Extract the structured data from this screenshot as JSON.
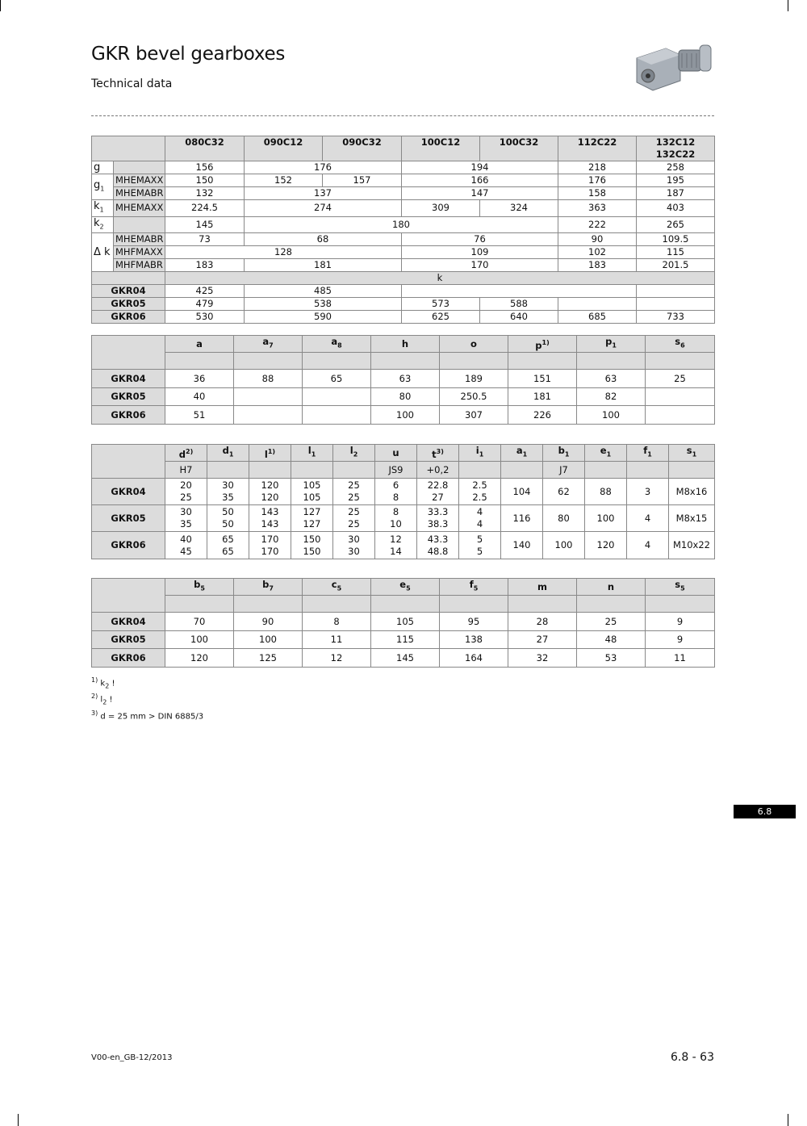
{
  "header": {
    "title": "GKR bevel gearboxes",
    "subtitle": "Technical data",
    "product_image": "bevel-gearbox-motor-image"
  },
  "tables": [
    {
      "rows": [
        [
          {
            "v": "",
            "cs": 2,
            "c": "h"
          },
          {
            "v": "080C32",
            "c": "h top"
          },
          {
            "v": "090C12",
            "c": "h top"
          },
          {
            "v": "090C32",
            "c": "h top"
          },
          {
            "v": "100C12",
            "c": "h top"
          },
          {
            "v": "100C32",
            "c": "h top"
          },
          {
            "v": "112C22",
            "c": "h top"
          },
          {
            "v": "132C12\n132C22",
            "c": "h top"
          }
        ],
        [
          {
            "v": "g",
            "c": "lab"
          },
          {
            "v": "",
            "c": "sublab"
          },
          {
            "v": "156"
          },
          {
            "v": "176",
            "cs": 2
          },
          {
            "v": "194",
            "cs": 2
          },
          {
            "v": "218"
          },
          {
            "v": "258"
          }
        ],
        [
          {
            "v": "g",
            "sub": "1",
            "rs": 2,
            "c": "lab"
          },
          {
            "v": "MHEMAXX",
            "c": "sublab"
          },
          {
            "v": "150"
          },
          {
            "v": "152"
          },
          {
            "v": "157"
          },
          {
            "v": "166",
            "cs": 2
          },
          {
            "v": "176"
          },
          {
            "v": "195"
          }
        ],
        [
          {
            "v": "MHEMABR",
            "c": "sublab"
          },
          {
            "v": "132"
          },
          {
            "v": "137",
            "cs": 2
          },
          {
            "v": "147",
            "cs": 2
          },
          {
            "v": "158"
          },
          {
            "v": "187"
          }
        ],
        [
          {
            "v": "k",
            "sub": "1",
            "c": "lab"
          },
          {
            "v": "MHEMAXX",
            "c": "sublab"
          },
          {
            "v": "224.5"
          },
          {
            "v": "274",
            "cs": 2
          },
          {
            "v": "309"
          },
          {
            "v": "324"
          },
          {
            "v": "363"
          },
          {
            "v": "403"
          }
        ],
        [
          {
            "v": "k",
            "sub": "2",
            "c": "lab"
          },
          {
            "v": "",
            "c": "sublab"
          },
          {
            "v": "145"
          },
          {
            "v": "180",
            "cs": 4
          },
          {
            "v": "222"
          },
          {
            "v": "265"
          }
        ],
        [
          {
            "v": "Δ k",
            "rs": 3,
            "c": "lab"
          },
          {
            "v": "MHEMABR",
            "c": "sublab"
          },
          {
            "v": "73"
          },
          {
            "v": "68",
            "cs": 2
          },
          {
            "v": "76",
            "cs": 2
          },
          {
            "v": "90"
          },
          {
            "v": "109.5"
          }
        ],
        [
          {
            "v": "MHFMAXX",
            "c": "sublab"
          },
          {
            "v": "128",
            "cs": 3
          },
          {
            "v": "109",
            "cs": 2
          },
          {
            "v": "102"
          },
          {
            "v": "115"
          }
        ],
        [
          {
            "v": "MHFMABR",
            "c": "sublab"
          },
          {
            "v": "183"
          },
          {
            "v": "181",
            "cs": 2
          },
          {
            "v": "170",
            "cs": 2
          },
          {
            "v": "183"
          },
          {
            "v": "201.5"
          }
        ],
        [
          {
            "v": "",
            "cs": 2,
            "c": "hn"
          },
          {
            "v": "k",
            "cs": 7,
            "c": "hn"
          }
        ],
        [
          {
            "v": "GKR04",
            "cs": 2,
            "c": "hl"
          },
          {
            "v": "425"
          },
          {
            "v": "485",
            "cs": 2
          },
          {
            "v": "",
            "cs": 3
          },
          {
            "v": ""
          }
        ],
        [
          {
            "v": "GKR05",
            "cs": 2,
            "c": "hl"
          },
          {
            "v": "479"
          },
          {
            "v": "538",
            "cs": 2
          },
          {
            "v": "573"
          },
          {
            "v": "588"
          },
          {
            "v": ""
          },
          {
            "v": ""
          }
        ],
        [
          {
            "v": "GKR06",
            "cs": 2,
            "c": "hl"
          },
          {
            "v": "530"
          },
          {
            "v": "590",
            "cs": 2
          },
          {
            "v": "625"
          },
          {
            "v": "640"
          },
          {
            "v": "685"
          },
          {
            "v": "733"
          }
        ]
      ]
    },
    {
      "rows": [
        [
          {
            "v": "",
            "rs": 2,
            "c": "h"
          },
          {
            "v": "a",
            "c": "h"
          },
          {
            "v": "a",
            "sub": "7",
            "c": "h"
          },
          {
            "v": "a",
            "sub": "8",
            "c": "h"
          },
          {
            "v": "h",
            "c": "h"
          },
          {
            "v": "o",
            "c": "h"
          },
          {
            "v": "p",
            "sup": "1)",
            "c": "h"
          },
          {
            "v": "p",
            "sub": "1",
            "c": "h"
          },
          {
            "v": "s",
            "sub": "6",
            "c": "h"
          }
        ],
        [
          {
            "v": "",
            "c": "hn"
          },
          {
            "v": "",
            "c": "hn"
          },
          {
            "v": "",
            "c": "hn"
          },
          {
            "v": "",
            "c": "hn"
          },
          {
            "v": "",
            "c": "hn"
          },
          {
            "v": "",
            "c": "hn"
          },
          {
            "v": "",
            "c": "hn"
          },
          {
            "v": "",
            "c": "hn"
          }
        ],
        [
          {
            "v": "GKR04",
            "c": "hl"
          },
          {
            "v": "36"
          },
          {
            "v": "88"
          },
          {
            "v": "65"
          },
          {
            "v": "63"
          },
          {
            "v": "189"
          },
          {
            "v": "151"
          },
          {
            "v": "63"
          },
          {
            "v": "25"
          }
        ],
        [
          {
            "v": "GKR05",
            "c": "hl"
          },
          {
            "v": "40"
          },
          {
            "v": ""
          },
          {
            "v": ""
          },
          {
            "v": "80"
          },
          {
            "v": "250.5"
          },
          {
            "v": "181"
          },
          {
            "v": "82"
          },
          {
            "v": ""
          }
        ],
        [
          {
            "v": "GKR06",
            "c": "hl"
          },
          {
            "v": "51"
          },
          {
            "v": ""
          },
          {
            "v": ""
          },
          {
            "v": "100"
          },
          {
            "v": "307"
          },
          {
            "v": "226"
          },
          {
            "v": "100"
          },
          {
            "v": ""
          }
        ]
      ]
    },
    {
      "rows": [
        [
          {
            "v": "",
            "rs": 2,
            "c": "h"
          },
          {
            "v": "d",
            "sup": "2)",
            "c": "h"
          },
          {
            "v": "d",
            "sub": "1",
            "c": "h"
          },
          {
            "v": "l",
            "sup": "1)",
            "c": "h"
          },
          {
            "v": "l",
            "sub": "1",
            "c": "h"
          },
          {
            "v": "l",
            "sub": "2",
            "c": "h"
          },
          {
            "v": "u",
            "c": "h"
          },
          {
            "v": "t",
            "sup": "3)",
            "c": "h"
          },
          {
            "v": "i",
            "sub": "1",
            "c": "h"
          },
          {
            "v": "a",
            "sub": "1",
            "c": "h"
          },
          {
            "v": "b",
            "sub": "1",
            "c": "h"
          },
          {
            "v": "e",
            "sub": "1",
            "c": "h"
          },
          {
            "v": "f",
            "sub": "1",
            "c": "h"
          },
          {
            "v": "s",
            "sub": "1",
            "c": "h"
          }
        ],
        [
          {
            "v": "H7",
            "c": "hn"
          },
          {
            "v": "",
            "c": "hn"
          },
          {
            "v": "",
            "c": "hn"
          },
          {
            "v": "",
            "c": "hn"
          },
          {
            "v": "",
            "c": "hn"
          },
          {
            "v": "JS9",
            "c": "hn"
          },
          {
            "v": "+0,2",
            "c": "hn"
          },
          {
            "v": "",
            "c": "hn"
          },
          {
            "v": "",
            "c": "hn"
          },
          {
            "v": "J7",
            "c": "hn"
          },
          {
            "v": "",
            "c": "hn"
          },
          {
            "v": "",
            "c": "hn"
          },
          {
            "v": "",
            "c": "hn"
          }
        ],
        [
          {
            "v": "GKR04",
            "c": "hl"
          },
          {
            "v": "20\n25"
          },
          {
            "v": "30\n35"
          },
          {
            "v": "120\n120"
          },
          {
            "v": "105\n105"
          },
          {
            "v": "25\n25"
          },
          {
            "v": "6\n8"
          },
          {
            "v": "22.8\n27"
          },
          {
            "v": "2.5\n2.5"
          },
          {
            "v": "104"
          },
          {
            "v": "62"
          },
          {
            "v": "88"
          },
          {
            "v": "3"
          },
          {
            "v": "M8x16"
          }
        ],
        [
          {
            "v": "GKR05",
            "c": "hl"
          },
          {
            "v": "30\n35"
          },
          {
            "v": "50\n50"
          },
          {
            "v": "143\n143"
          },
          {
            "v": "127\n127"
          },
          {
            "v": "25\n25"
          },
          {
            "v": "8\n10"
          },
          {
            "v": "33.3\n38.3"
          },
          {
            "v": "4\n4"
          },
          {
            "v": "116"
          },
          {
            "v": "80"
          },
          {
            "v": "100"
          },
          {
            "v": "4"
          },
          {
            "v": "M8x15"
          }
        ],
        [
          {
            "v": "GKR06",
            "c": "hl"
          },
          {
            "v": "40\n45"
          },
          {
            "v": "65\n65"
          },
          {
            "v": "170\n170"
          },
          {
            "v": "150\n150"
          },
          {
            "v": "30\n30"
          },
          {
            "v": "12\n14"
          },
          {
            "v": "43.3\n48.8"
          },
          {
            "v": "5\n5"
          },
          {
            "v": "140"
          },
          {
            "v": "100"
          },
          {
            "v": "120"
          },
          {
            "v": "4"
          },
          {
            "v": "M10x22"
          }
        ]
      ]
    },
    {
      "rows": [
        [
          {
            "v": "",
            "rs": 2,
            "c": "h"
          },
          {
            "v": "b",
            "sub": "5",
            "c": "h"
          },
          {
            "v": "b",
            "sub": "7",
            "c": "h"
          },
          {
            "v": "c",
            "sub": "5",
            "c": "h"
          },
          {
            "v": "e",
            "sub": "5",
            "c": "h"
          },
          {
            "v": "f",
            "sub": "5",
            "c": "h"
          },
          {
            "v": "m",
            "c": "h"
          },
          {
            "v": "n",
            "c": "h"
          },
          {
            "v": "s",
            "sub": "5",
            "c": "h"
          }
        ],
        [
          {
            "v": "",
            "c": "hn"
          },
          {
            "v": "",
            "c": "hn"
          },
          {
            "v": "",
            "c": "hn"
          },
          {
            "v": "",
            "c": "hn"
          },
          {
            "v": "",
            "c": "hn"
          },
          {
            "v": "",
            "c": "hn"
          },
          {
            "v": "",
            "c": "hn"
          },
          {
            "v": "",
            "c": "hn"
          }
        ],
        [
          {
            "v": "GKR04",
            "c": "hl"
          },
          {
            "v": "70"
          },
          {
            "v": "90"
          },
          {
            "v": "8"
          },
          {
            "v": "105"
          },
          {
            "v": "95"
          },
          {
            "v": "28"
          },
          {
            "v": "25"
          },
          {
            "v": "9"
          }
        ],
        [
          {
            "v": "GKR05",
            "c": "hl"
          },
          {
            "v": "100"
          },
          {
            "v": "100"
          },
          {
            "v": "11"
          },
          {
            "v": "115"
          },
          {
            "v": "138"
          },
          {
            "v": "27"
          },
          {
            "v": "48"
          },
          {
            "v": "9"
          }
        ],
        [
          {
            "v": "GKR06",
            "c": "hl"
          },
          {
            "v": "120"
          },
          {
            "v": "125"
          },
          {
            "v": "12"
          },
          {
            "v": "145"
          },
          {
            "v": "164"
          },
          {
            "v": "32"
          },
          {
            "v": "53"
          },
          {
            "v": "11"
          }
        ]
      ]
    }
  ],
  "footnotes": [
    {
      "mark": "1)",
      "text": "k",
      "sub": "2",
      "tail": " !"
    },
    {
      "mark": "2)",
      "text": "l",
      "sub": "2",
      "tail": " !"
    },
    {
      "mark": "3)",
      "text": "d = 25 mm > DIN 6885/3",
      "sub": "",
      "tail": ""
    }
  ],
  "section_tab": "6.8",
  "footer": {
    "doc_code": "V00-en_GB-12/2013",
    "page_number": "6.8 - 63"
  }
}
